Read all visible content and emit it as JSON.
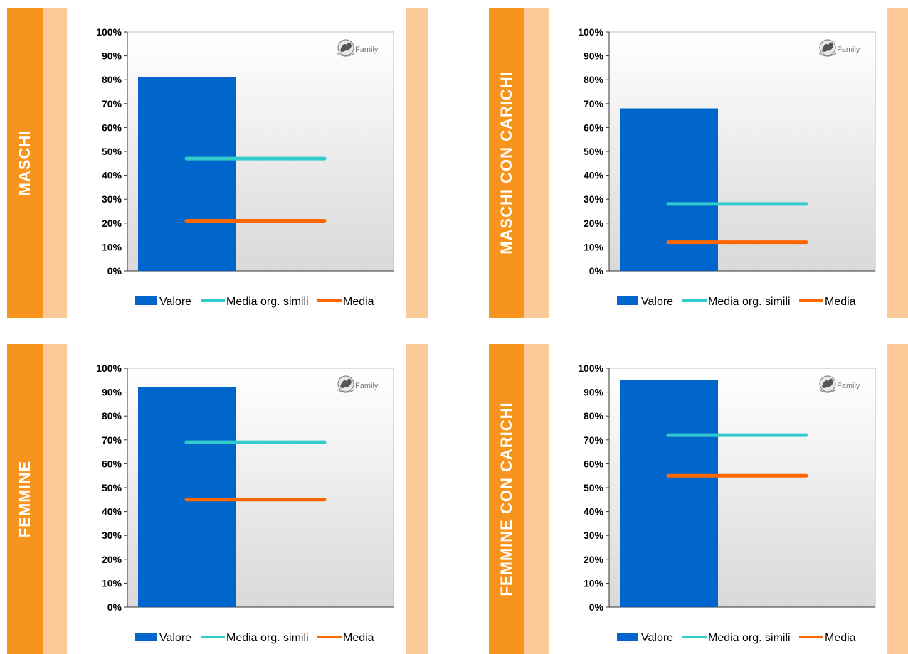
{
  "colors": {
    "stripe": "#F7941D",
    "peach": "#FCC998",
    "bar": "#0066CC",
    "media_simili": "#33CCCC",
    "media": "#FF6600"
  },
  "legend": {
    "valore": "Valore",
    "simili": "Media org. simili",
    "media": "Media"
  },
  "logo": {
    "text": "Family",
    "icon": "family-logo-icon"
  },
  "chart_data": [
    {
      "type": "bar",
      "label": "MASCHI",
      "ylim": [
        0,
        100
      ],
      "yticks": [
        "0%",
        "10%",
        "20%",
        "30%",
        "40%",
        "50%",
        "60%",
        "70%",
        "80%",
        "90%",
        "100%"
      ],
      "valore": 81,
      "media_org_simili": 47,
      "media": 21
    },
    {
      "type": "bar",
      "label": "MASCHI CON CARICHI",
      "ylim": [
        0,
        100
      ],
      "yticks": [
        "0%",
        "10%",
        "20%",
        "30%",
        "40%",
        "50%",
        "60%",
        "70%",
        "80%",
        "90%",
        "100%"
      ],
      "valore": 68,
      "media_org_simili": 28,
      "media": 12
    },
    {
      "type": "bar",
      "label": "FEMMINE",
      "ylim": [
        0,
        100
      ],
      "yticks": [
        "0%",
        "10%",
        "20%",
        "30%",
        "40%",
        "50%",
        "60%",
        "70%",
        "80%",
        "90%",
        "100%"
      ],
      "valore": 92,
      "media_org_simili": 69,
      "media": 45
    },
    {
      "type": "bar",
      "label": "FEMMINE CON CARICHI",
      "ylim": [
        0,
        100
      ],
      "yticks": [
        "0%",
        "10%",
        "20%",
        "30%",
        "40%",
        "50%",
        "60%",
        "70%",
        "80%",
        "90%",
        "100%"
      ],
      "valore": 95,
      "media_org_simili": 72,
      "media": 55
    }
  ]
}
